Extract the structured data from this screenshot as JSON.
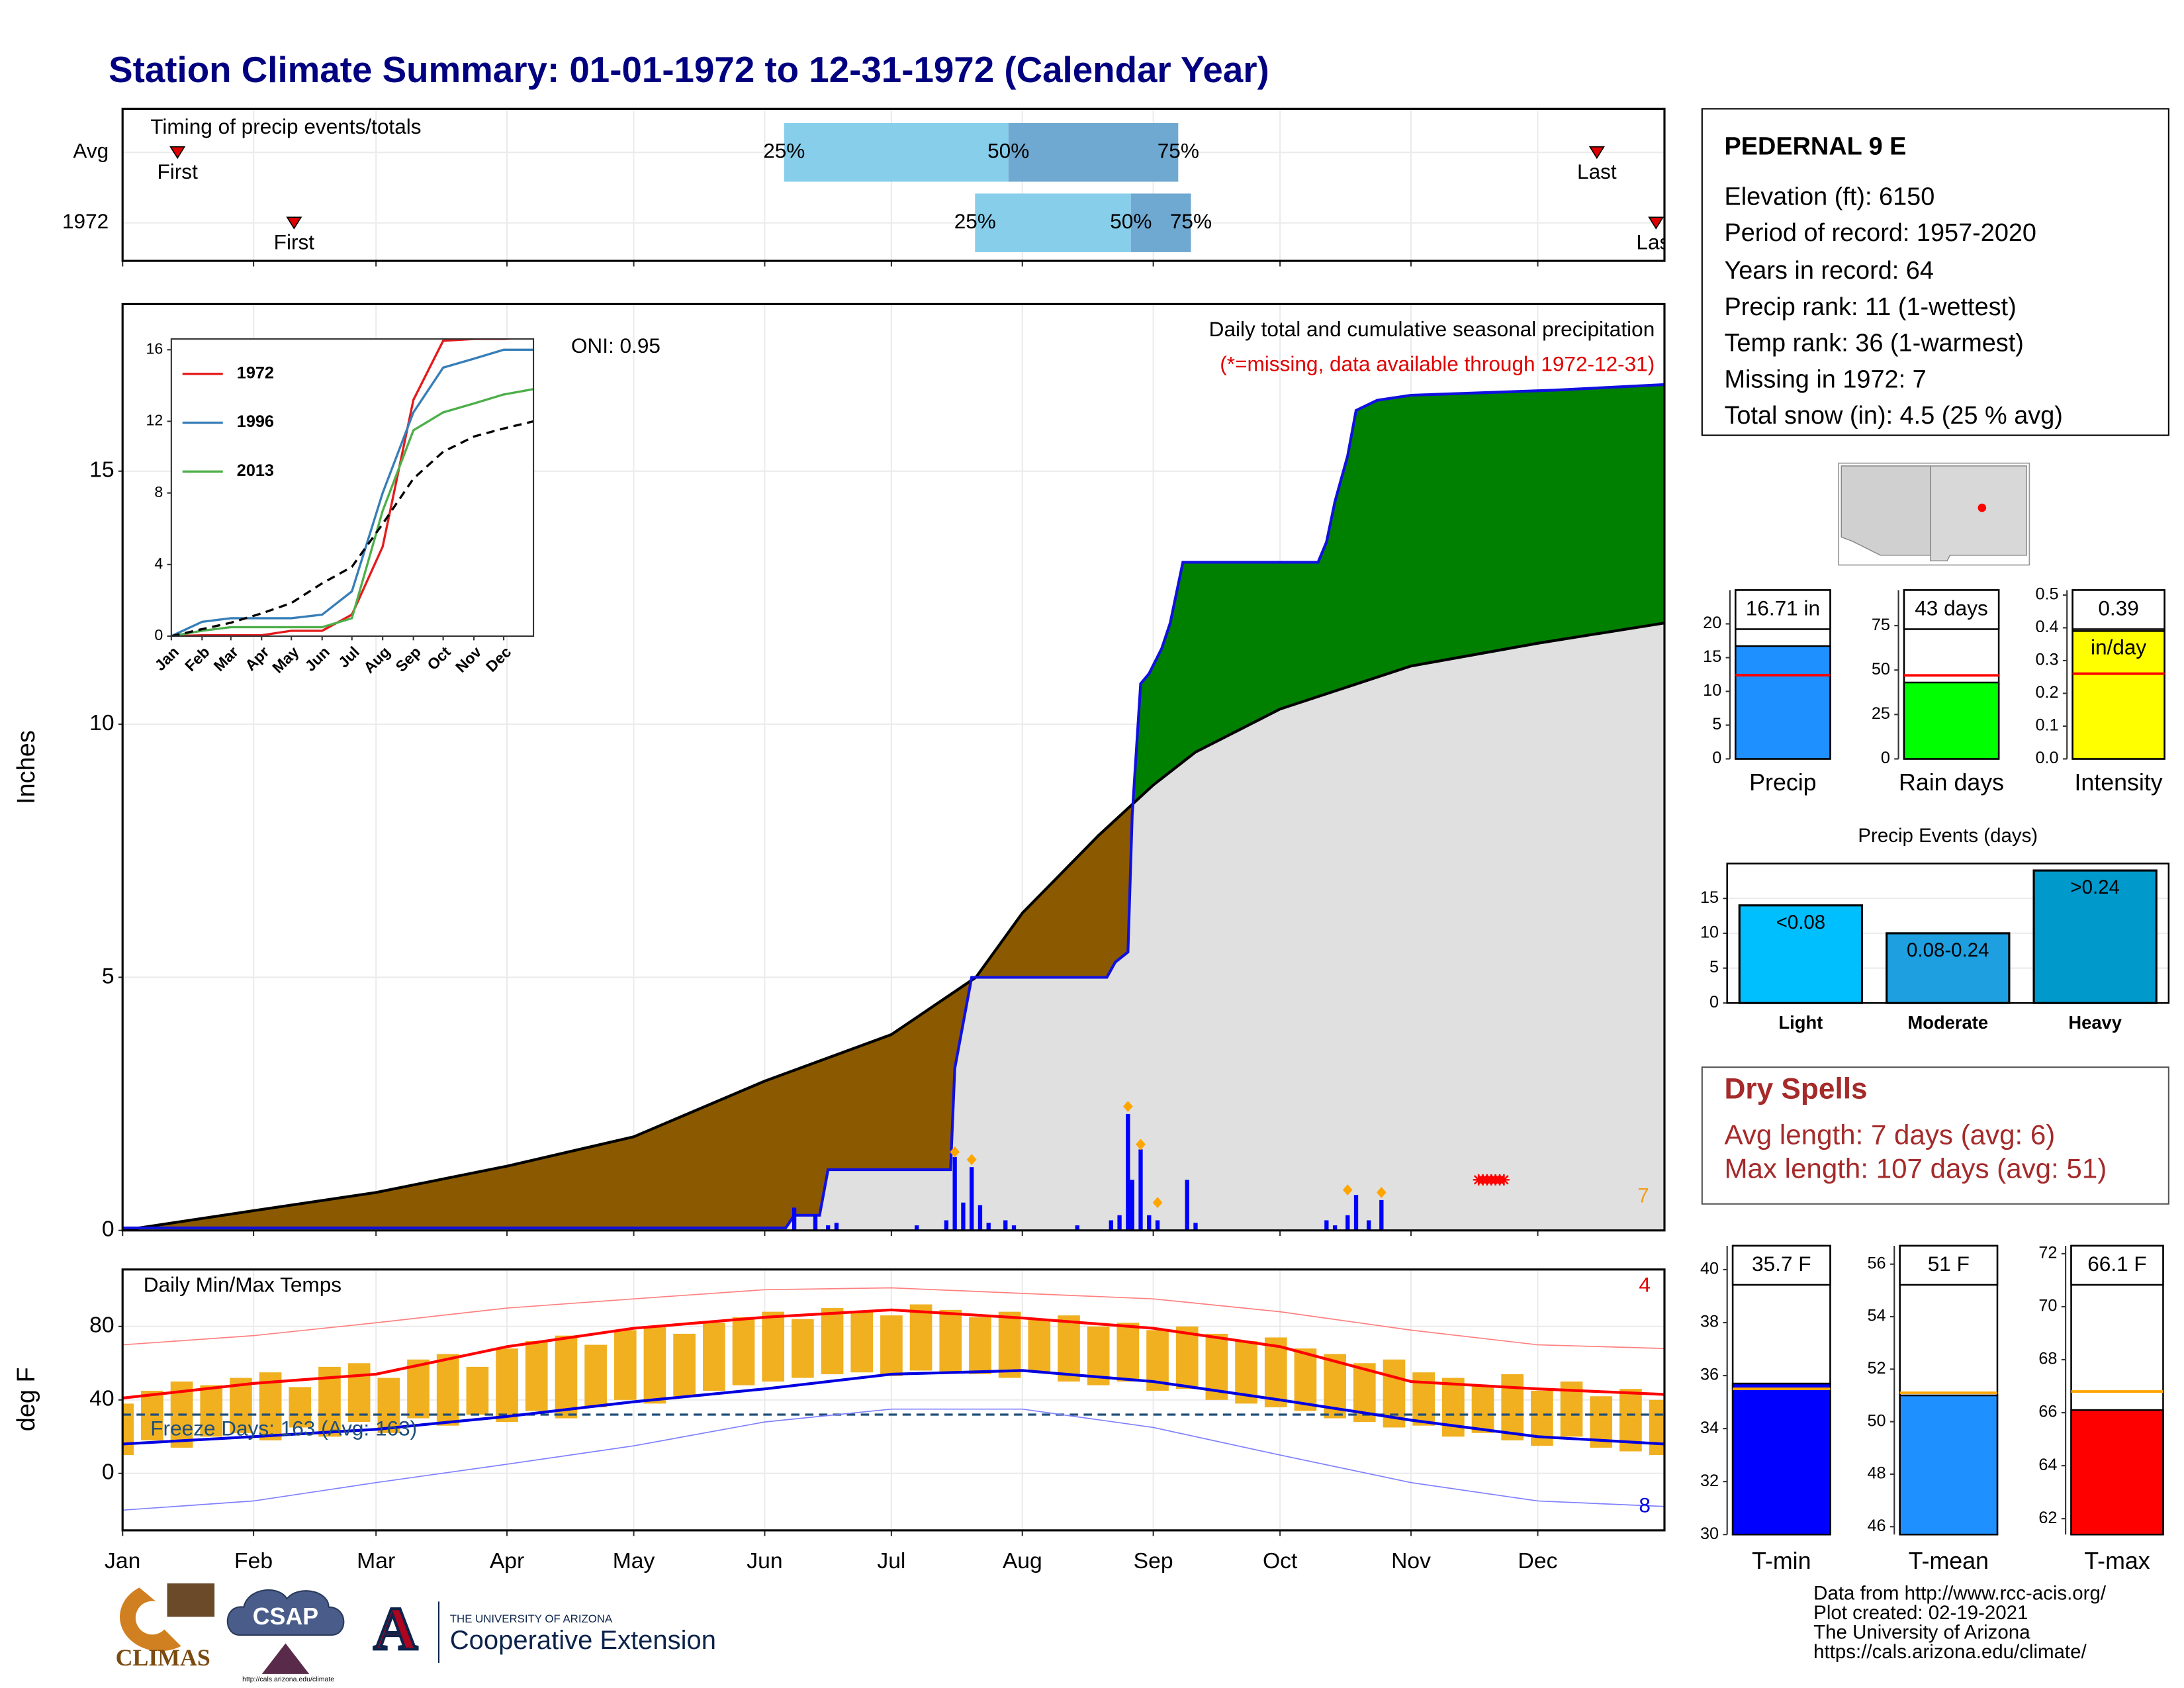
{
  "title": "Station Climate Summary: 01-01-1972 to 12-31-1972 (Calendar Year)",
  "station": {
    "name": "PEDERNAL 9 E",
    "lines": [
      "Elevation (ft): 6150",
      "Period of record: 1957-2020",
      "Years in record: 64",
      "Precip rank: 11 (1-wettest)",
      "Temp rank: 36 (1-warmest)",
      "Missing in 1972: 7",
      "Total snow (in): 4.5 (25 % avg)"
    ]
  },
  "dry_spells": {
    "title": "Dry Spells",
    "lines": [
      "Avg length: 7 days (avg: 6)",
      "Max length: 107 days (avg: 51)"
    ]
  },
  "footer": [
    "Data from http://www.rcc-acis.org/",
    "Plot created: 02-19-2021",
    "The University of Arizona",
    "https://cals.arizona.edu/climate/"
  ],
  "logos": {
    "climas": "CLIMAS",
    "csap": "CSAP",
    "csap_url": "http://cals.arizona.edu/climate",
    "ua_letter": "A",
    "ua_small": "THE UNIVERSITY OF ARIZONA",
    "ua_name": "Cooperative Extension"
  },
  "chart_data": [
    {
      "type": "timing",
      "title": "Timing of precip events/totals",
      "xlim": [
        1,
        366
      ],
      "xticks": [
        1,
        32,
        61,
        92,
        122,
        153,
        183,
        214,
        245,
        275,
        306,
        336
      ],
      "marker_labels": [
        "First",
        "Last"
      ],
      "quartile_labels": [
        "25%",
        "50%",
        "75%"
      ],
      "colors": [
        "#87ceeb",
        "#6fa8d0"
      ],
      "marker_color": "#e00000",
      "rows": [
        {
          "name": "Avg",
          "first": 14,
          "q25": 157.6,
          "q50": 210.7,
          "q75": 250.9,
          "last": 350
        },
        {
          "name": "1972",
          "first": 41.6,
          "q25": 202.8,
          "q50": 239.7,
          "q75": 253.9,
          "last": 364
        }
      ]
    },
    {
      "type": "area",
      "y_label": "Inches",
      "xlim": [
        1,
        366
      ],
      "xticks": [
        1,
        32,
        61,
        92,
        122,
        153,
        183,
        214,
        245,
        275,
        306,
        336
      ],
      "ylim": [
        0,
        18.3
      ],
      "yticks": [
        0,
        5,
        10,
        15
      ],
      "grid": true,
      "annotations": [
        {
          "text": "ONI: 0.95",
          "color": "#000000"
        },
        {
          "text": "Daily total and cumulative seasonal precipitation",
          "color": "#000000"
        },
        {
          "text": "(*=missing, data available through 1972-12-31)",
          "color": "#e00000"
        },
        {
          "text": "7",
          "color": "#f0a020"
        }
      ],
      "above_color": "#008000",
      "below_color": "#8b5a00",
      "base_color": "#e0e0e0",
      "cumulative": {
        "color": "#1010e0",
        "x": [
          1,
          158,
          160,
          166,
          168,
          197,
          198,
          202,
          234,
          236,
          239,
          240,
          242,
          244,
          247,
          249,
          252,
          284,
          286,
          288,
          291,
          293,
          298,
          306,
          340,
          366
        ],
        "values": [
          0.05,
          0.05,
          0.3,
          0.3,
          1.2,
          1.2,
          3.2,
          5.0,
          5.0,
          5.3,
          5.5,
          8.2,
          10.8,
          11.0,
          11.5,
          12.0,
          13.2,
          13.2,
          13.6,
          14.4,
          15.3,
          16.2,
          16.4,
          16.5,
          16.6,
          16.71
        ]
      },
      "average": {
        "color": "#000000",
        "x": [
          1,
          32,
          61,
          92,
          122,
          153,
          183,
          203,
          214,
          232,
          245,
          255,
          275,
          306,
          336,
          366
        ],
        "values": [
          0,
          0.39,
          0.75,
          1.27,
          1.85,
          2.95,
          3.87,
          5.0,
          6.27,
          7.8,
          8.8,
          9.45,
          10.3,
          11.15,
          11.6,
          12.0
        ]
      },
      "daily": {
        "color": "#0000ff",
        "x": [
          160,
          165,
          168,
          170,
          189,
          196,
          198,
          200,
          202,
          204,
          206,
          210,
          212,
          227,
          235,
          237,
          239,
          240,
          242,
          244,
          246,
          253,
          255,
          286,
          288,
          291,
          293,
          296,
          299
        ],
        "values": [
          0.45,
          0.3,
          0.1,
          0.15,
          0.1,
          0.2,
          1.45,
          0.55,
          1.25,
          0.5,
          0.15,
          0.2,
          0.1,
          0.1,
          0.2,
          0.3,
          2.3,
          1.0,
          1.6,
          0.3,
          0.2,
          1.0,
          0.15,
          0.2,
          0.1,
          0.3,
          0.7,
          0.2,
          0.6
        ]
      },
      "markers": {
        "color": "#ffa500",
        "x": [
          198,
          202,
          239,
          242,
          246,
          291,
          299
        ],
        "values": [
          1.55,
          1.4,
          2.45,
          1.7,
          0.55,
          0.8,
          0.75
        ]
      },
      "missing": {
        "color": "#ff0000",
        "x": [
          322,
          323,
          324,
          325,
          326,
          327,
          328
        ],
        "values": [
          1,
          1,
          1,
          1,
          1,
          1,
          1
        ]
      }
    },
    {
      "type": "line",
      "xlim": [
        1,
        366
      ],
      "ylim": [
        0,
        16.6
      ],
      "yticks": [
        0,
        4,
        8,
        12,
        16
      ],
      "xticks": [
        {
          "value": 1,
          "label": "Jan"
        },
        {
          "value": 32,
          "label": "Feb"
        },
        {
          "value": 61,
          "label": "Mar"
        },
        {
          "value": 92,
          "label": "Apr"
        },
        {
          "value": 122,
          "label": "May"
        },
        {
          "value": 153,
          "label": "Jun"
        },
        {
          "value": 183,
          "label": "Jul"
        },
        {
          "value": 214,
          "label": "Aug"
        },
        {
          "value": 245,
          "label": "Sep"
        },
        {
          "value": 275,
          "label": "Oct"
        },
        {
          "value": 306,
          "label": "Nov"
        },
        {
          "value": 336,
          "label": "Dec"
        }
      ],
      "x": [
        1,
        32,
        61,
        92,
        122,
        153,
        183,
        214,
        245,
        275,
        306,
        336,
        366
      ],
      "series": [
        {
          "name": "1972",
          "color": "#e41a1c",
          "values": [
            0,
            0.05,
            0.05,
            0.05,
            0.3,
            0.3,
            1.2,
            5.0,
            13.2,
            16.5,
            16.6,
            16.6,
            16.71
          ]
        },
        {
          "name": "1996",
          "color": "#377eb8",
          "values": [
            0,
            0.8,
            1.0,
            1.0,
            1.0,
            1.2,
            2.5,
            8.0,
            12.5,
            15.0,
            15.5,
            16.0,
            16.0
          ]
        },
        {
          "name": "2013",
          "color": "#4daf4a",
          "values": [
            0,
            0.3,
            0.5,
            0.5,
            0.5,
            0.5,
            1.0,
            7.0,
            11.5,
            12.5,
            13.0,
            13.5,
            13.8
          ]
        },
        {
          "color": "#000000",
          "dash": true,
          "values": [
            0,
            0.39,
            0.75,
            1.27,
            1.85,
            2.95,
            3.87,
            6.27,
            8.8,
            10.3,
            11.15,
            11.6,
            12.0
          ]
        }
      ]
    },
    {
      "type": "temperature",
      "title": "Daily Min/Max Temps",
      "y_label": "deg F",
      "xlim": [
        1,
        366
      ],
      "ylim": [
        -31,
        111
      ],
      "yticks": [
        0,
        40,
        80
      ],
      "grid": true,
      "xticks": [
        {
          "value": 1,
          "label": "Jan"
        },
        {
          "value": 32,
          "label": "Feb"
        },
        {
          "value": 61,
          "label": "Mar"
        },
        {
          "value": 92,
          "label": "Apr"
        },
        {
          "value": 122,
          "label": "May"
        },
        {
          "value": 153,
          "label": "Jun"
        },
        {
          "value": 183,
          "label": "Jul"
        },
        {
          "value": 214,
          "label": "Aug"
        },
        {
          "value": 245,
          "label": "Sep"
        },
        {
          "value": 275,
          "label": "Oct"
        },
        {
          "value": 306,
          "label": "Nov"
        },
        {
          "value": 336,
          "label": "Dec"
        }
      ],
      "freeze_line": 32,
      "freeze_label": "Freeze Days: 163 (Avg: 163)",
      "freeze_color": "#1f4e79",
      "annotations": [
        {
          "text": "4",
          "color": "#e00000"
        },
        {
          "text": "8",
          "color": "#0000e0"
        }
      ],
      "bars": {
        "color": "#f0b020",
        "x": [
          1,
          8,
          15,
          22,
          29,
          36,
          43,
          50,
          57,
          64,
          71,
          78,
          85,
          92,
          99,
          106,
          113,
          120,
          127,
          134,
          141,
          148,
          155,
          162,
          169,
          176,
          183,
          190,
          197,
          204,
          211,
          218,
          225,
          232,
          239,
          246,
          253,
          260,
          267,
          274,
          281,
          288,
          295,
          302,
          309,
          316,
          323,
          330,
          337,
          344,
          351,
          358,
          365
        ],
        "high": [
          38,
          45,
          50,
          48,
          52,
          55,
          47,
          58,
          60,
          52,
          62,
          65,
          58,
          68,
          72,
          75,
          70,
          78,
          80,
          76,
          82,
          85,
          88,
          84,
          90,
          88,
          86,
          92,
          89,
          85,
          88,
          84,
          86,
          80,
          82,
          78,
          80,
          76,
          72,
          74,
          68,
          65,
          60,
          62,
          55,
          52,
          48,
          54,
          45,
          50,
          42,
          46,
          40
        ],
        "low": [
          10,
          18,
          14,
          20,
          22,
          18,
          25,
          20,
          28,
          22,
          30,
          26,
          32,
          28,
          34,
          30,
          36,
          40,
          38,
          42,
          45,
          48,
          50,
          52,
          54,
          55,
          53,
          56,
          55,
          54,
          52,
          55,
          50,
          48,
          50,
          45,
          46,
          40,
          38,
          36,
          34,
          30,
          28,
          25,
          26,
          20,
          22,
          18,
          15,
          20,
          14,
          12,
          10
        ]
      },
      "x": [
        1,
        32,
        61,
        92,
        122,
        153,
        183,
        214,
        245,
        275,
        306,
        336,
        366
      ],
      "series": [
        {
          "color": "#ff8080",
          "width": 0.8,
          "values": [
            70,
            75,
            82,
            90,
            95,
            100,
            101,
            98,
            95,
            88,
            78,
            70,
            68
          ]
        },
        {
          "color": "#8080ff",
          "width": 0.8,
          "values": [
            -20,
            -15,
            -5,
            5,
            15,
            28,
            35,
            35,
            25,
            10,
            -5,
            -15,
            -18
          ]
        },
        {
          "color": "#ff0000",
          "width": 2,
          "values": [
            41,
            49,
            54,
            69,
            79,
            85,
            89,
            84.6,
            79,
            69,
            50,
            46,
            43
          ]
        },
        {
          "color": "#0000e0",
          "width": 2,
          "values": [
            16,
            20,
            24,
            31,
            39,
            46,
            54,
            56,
            50,
            40,
            29,
            20,
            16
          ]
        }
      ]
    },
    {
      "type": "bar",
      "categories": [
        "Precip"
      ],
      "values": [
        16.71
      ],
      "value_labels": [
        "16.71 in"
      ],
      "reference": 12.4,
      "reference_color": "#ff0000",
      "color": "#1e90ff",
      "ylim": [
        0,
        25
      ],
      "yticks": [
        0,
        5,
        10,
        15,
        20
      ]
    },
    {
      "type": "bar",
      "categories": [
        "Rain days"
      ],
      "values": [
        43
      ],
      "value_labels": [
        "43 days"
      ],
      "reference": 47,
      "reference_color": "#ff0000",
      "color": "#00ff00",
      "ylim": [
        0,
        95
      ],
      "yticks": [
        0,
        25,
        50,
        75
      ]
    },
    {
      "type": "bar",
      "categories": [
        "Intensity"
      ],
      "values": [
        0.39
      ],
      "unit_label": "in/day",
      "reference": 0.26,
      "reference_color": "#ff0000",
      "color": "#ffff00",
      "ylim": [
        0,
        0.515
      ],
      "yticks": [
        {
          "value": 0,
          "label": "0.0"
        },
        0.1,
        0.2,
        0.3,
        0.4,
        0.5
      ]
    },
    {
      "type": "events",
      "title": "Precip Events (days)",
      "categories": [
        "Light",
        "Moderate",
        "Heavy"
      ],
      "values": [
        14,
        10,
        19
      ],
      "ranges": [
        "<0.08",
        "0.08-0.24",
        ">0.24"
      ],
      "colors": [
        "#00bfff",
        "#1e9fe0",
        "#0099cc"
      ],
      "ylim": [
        0,
        20
      ],
      "yticks": [
        0,
        5,
        10,
        15
      ],
      "grid": true
    },
    {
      "type": "bar",
      "categories": [
        "T-min"
      ],
      "values": [
        35.7
      ],
      "value_labels": [
        "35.7 F"
      ],
      "reference": 35.5,
      "reference_color": "#ffa500",
      "color": "#0000ff",
      "ylim": [
        30,
        40.9
      ],
      "yticks": [
        30,
        32,
        34,
        36,
        38,
        40
      ]
    },
    {
      "type": "bar",
      "categories": [
        "T-mean"
      ],
      "values": [
        51
      ],
      "value_labels": [
        "51 F"
      ],
      "reference": 51.1,
      "reference_color": "#ffa500",
      "color": "#1e90ff",
      "ylim": [
        45.7,
        56.7
      ],
      "yticks": [
        46,
        48,
        50,
        52,
        54,
        56
      ]
    },
    {
      "type": "bar",
      "categories": [
        "T-max"
      ],
      "values": [
        66.1
      ],
      "value_labels": [
        "66.1 F"
      ],
      "reference": 66.8,
      "reference_color": "#ffa500",
      "color": "#ff0000",
      "ylim": [
        61.4,
        72.3
      ],
      "yticks": [
        62,
        64,
        66,
        68,
        70,
        72
      ]
    }
  ]
}
